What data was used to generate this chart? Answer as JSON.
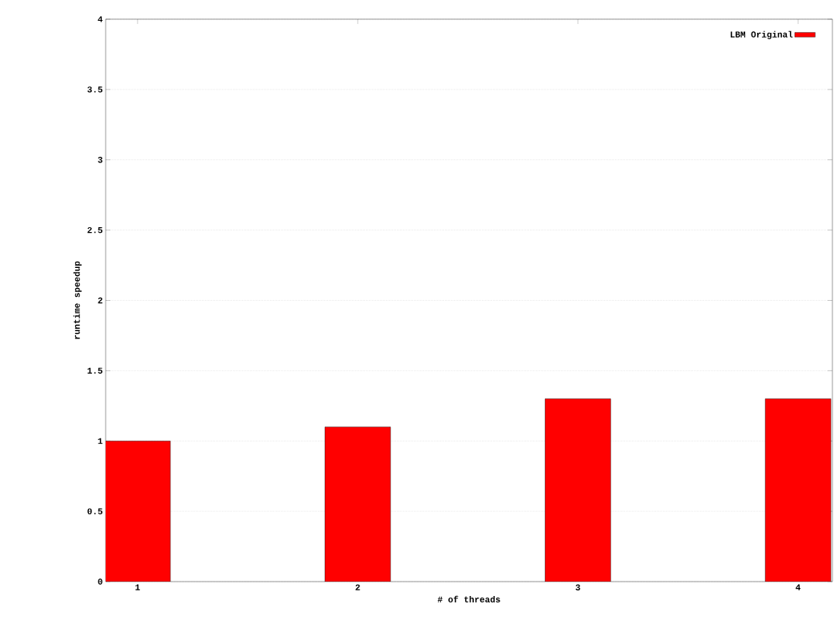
{
  "chart_data": {
    "type": "bar",
    "xlabel": "# of threads",
    "ylabel": "runtime speedup",
    "categories": [
      "1",
      "2",
      "3",
      "4"
    ],
    "series": [
      {
        "name": "LBM Original",
        "color": "#ff0000",
        "values": [
          1.0,
          1.1,
          1.3,
          1.3
        ]
      }
    ],
    "ylim": [
      0,
      4
    ],
    "yticks": [
      0,
      0.5,
      1,
      1.5,
      2,
      2.5,
      3,
      3.5,
      4
    ],
    "grid": "y",
    "legend": "top right"
  }
}
